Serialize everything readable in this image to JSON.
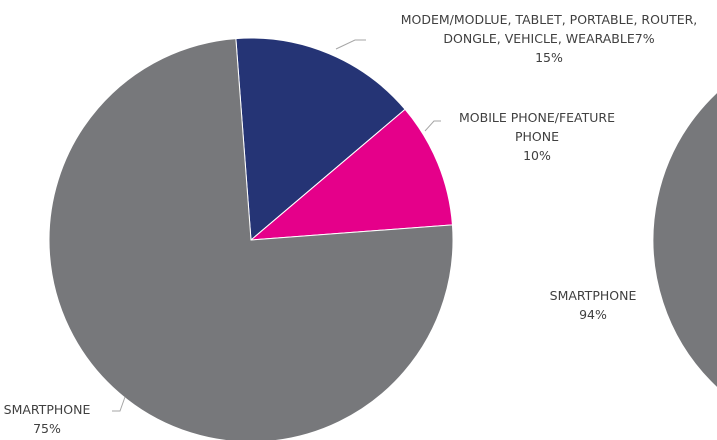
{
  "chart_data": [
    {
      "type": "pie",
      "slices": [
        {
          "label_lines": [
            "MODEM/MODLUE, TABLET, PORTABLE, ROUTER,",
            "DONGLE, VEHICLE, WEARABLE7%"
          ],
          "value": 15,
          "value_label": "15%",
          "color": "#253475"
        },
        {
          "label_lines": [
            "MOBILE PHONE/FEATURE",
            "PHONE"
          ],
          "value": 10,
          "value_label": "10%",
          "color": "#e5008a"
        },
        {
          "label_lines": [
            "SMARTPHONE"
          ],
          "value": 75,
          "value_label": "75%",
          "color": "#77787b"
        }
      ]
    },
    {
      "type": "pie",
      "slices": [
        {
          "label_lines": [
            "SMARTPHONE"
          ],
          "value": 94,
          "value_label": "94%",
          "color": "#77787b"
        }
      ]
    }
  ],
  "colors": {
    "leader_line": "#a6a6a6",
    "label_text": "#404040"
  }
}
